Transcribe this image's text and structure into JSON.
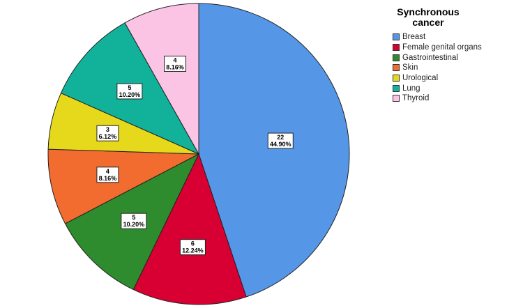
{
  "chart_data": {
    "type": "pie",
    "legend_title": "Synchronous cancer",
    "legend_position": "top-right",
    "slices": [
      {
        "label": "Breast",
        "count": "22",
        "percent": "44.90%",
        "value": 22,
        "color": "#5596e6"
      },
      {
        "label": "Female genital organs",
        "count": "6",
        "percent": "12.24%",
        "value": 6,
        "color": "#d80032"
      },
      {
        "label": "Gastrointestinal",
        "count": "5",
        "percent": "10.20%",
        "value": 5,
        "color": "#2e8b2e"
      },
      {
        "label": "Skin",
        "count": "4",
        "percent": "8.16%",
        "value": 4,
        "color": "#f26b2f"
      },
      {
        "label": "Urological",
        "count": "3",
        "percent": "6.12%",
        "value": 3,
        "color": "#e6d81a"
      },
      {
        "label": "Lung",
        "count": "5",
        "percent": "10.20%",
        "value": 5,
        "color": "#12b29a"
      },
      {
        "label": "Thyroid",
        "count": "4",
        "percent": "8.16%",
        "value": 4,
        "color": "#fcc4e4"
      }
    ]
  }
}
